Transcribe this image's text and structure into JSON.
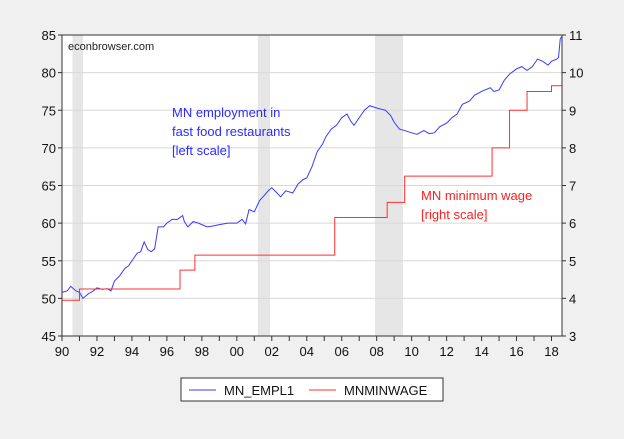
{
  "chart_data": {
    "type": "line",
    "watermark": "econbrowser.com",
    "x_ticks": [
      "90",
      "92",
      "94",
      "96",
      "98",
      "00",
      "02",
      "04",
      "06",
      "08",
      "10",
      "12",
      "14",
      "16",
      "18"
    ],
    "xlim": [
      1990,
      2018.6
    ],
    "left_axis": {
      "ylim": [
        45,
        85
      ],
      "ticks": [
        45,
        50,
        55,
        60,
        65,
        70,
        75,
        80,
        85
      ]
    },
    "right_axis": {
      "ylim": [
        3,
        11
      ],
      "ticks": [
        3,
        4,
        5,
        6,
        7,
        8,
        9,
        10,
        11
      ]
    },
    "grid": true,
    "legend_position": "bottom",
    "recessions": [
      [
        1990.6,
        1991.2
      ],
      [
        2001.2,
        2001.9
      ],
      [
        2007.9,
        2009.5
      ]
    ],
    "annotations": [
      {
        "lines": [
          "MN employment in",
          "fast food restaurants",
          "[left scale]"
        ],
        "color": "#2b2bff"
      },
      {
        "lines": [
          "MN minimum wage",
          "[right scale]"
        ],
        "color": "#ff2020"
      }
    ],
    "series": [
      {
        "name": "MN_EMPL1",
        "axis": "left",
        "color": "#3a3aff",
        "x": [
          1990.0,
          1990.3,
          1990.5,
          1990.8,
          1991.0,
          1991.2,
          1991.5,
          1991.8,
          1992.0,
          1992.3,
          1992.6,
          1992.8,
          1993.0,
          1993.3,
          1993.6,
          1993.8,
          1994.0,
          1994.3,
          1994.5,
          1994.7,
          1994.9,
          1995.1,
          1995.3,
          1995.5,
          1995.8,
          1996.0,
          1996.3,
          1996.6,
          1996.9,
          1997.0,
          1997.2,
          1997.5,
          1997.8,
          1998.0,
          1998.3,
          1998.6,
          1999.0,
          1999.5,
          2000.0,
          2000.3,
          2000.5,
          2000.7,
          2001.0,
          2001.3,
          2001.5,
          2001.8,
          2002.0,
          2002.3,
          2002.5,
          2002.8,
          2003.2,
          2003.5,
          2003.8,
          2004.0,
          2004.3,
          2004.6,
          2004.9,
          2005.1,
          2005.4,
          2005.7,
          2006.0,
          2006.3,
          2006.5,
          2006.7,
          2007.0,
          2007.3,
          2007.6,
          2008.0,
          2008.5,
          2008.8,
          2009.0,
          2009.3,
          2009.6,
          2010.0,
          2010.3,
          2010.7,
          2011.0,
          2011.3,
          2011.6,
          2012.0,
          2012.3,
          2012.6,
          2012.9,
          2013.3,
          2013.6,
          2014.0,
          2014.3,
          2014.5,
          2014.7,
          2015.0,
          2015.3,
          2015.6,
          2016.0,
          2016.3,
          2016.6,
          2016.9,
          2017.2,
          2017.5,
          2017.8,
          2018.0,
          2018.3,
          2018.4,
          2018.5,
          2018.6
        ],
        "values": [
          50.8,
          51.0,
          51.6,
          51.0,
          50.8,
          50.0,
          50.6,
          51.0,
          51.4,
          51.2,
          51.3,
          51.0,
          52.3,
          53.0,
          54.0,
          54.3,
          55.0,
          56.0,
          56.2,
          57.5,
          56.5,
          56.2,
          56.6,
          59.5,
          59.5,
          60.0,
          60.5,
          60.5,
          61.0,
          60.2,
          59.5,
          60.2,
          60.0,
          59.8,
          59.5,
          59.6,
          59.8,
          60.0,
          60.0,
          60.5,
          59.9,
          61.8,
          61.5,
          63.0,
          63.5,
          64.3,
          64.7,
          64.0,
          63.5,
          64.3,
          64.0,
          65.2,
          65.8,
          66.0,
          67.5,
          69.5,
          70.5,
          71.5,
          72.5,
          73.0,
          74.0,
          74.5,
          73.6,
          73.0,
          74.0,
          75.0,
          75.6,
          75.3,
          75.0,
          74.3,
          73.4,
          72.5,
          72.3,
          72.0,
          71.8,
          72.3,
          71.9,
          72.0,
          72.8,
          73.3,
          74.0,
          74.5,
          75.8,
          76.2,
          77.0,
          77.5,
          77.8,
          78.0,
          77.5,
          77.7,
          79.0,
          79.8,
          80.5,
          80.8,
          80.3,
          80.8,
          81.8,
          81.5,
          81.0,
          81.5,
          81.8,
          82.0,
          84.5,
          84.8
        ]
      },
      {
        "name": "MNMINWAGE",
        "axis": "right",
        "color": "#ff3030",
        "step": true,
        "x": [
          1990.0,
          1991.0,
          1996.75,
          1997.6,
          2005.6,
          2008.6,
          2009.6,
          2014.6,
          2015.6,
          2016.6,
          2018.0,
          2018.6
        ],
        "values": [
          3.95,
          4.25,
          4.75,
          5.15,
          6.15,
          6.55,
          7.25,
          8.0,
          9.0,
          9.5,
          9.65,
          9.65
        ]
      }
    ]
  }
}
